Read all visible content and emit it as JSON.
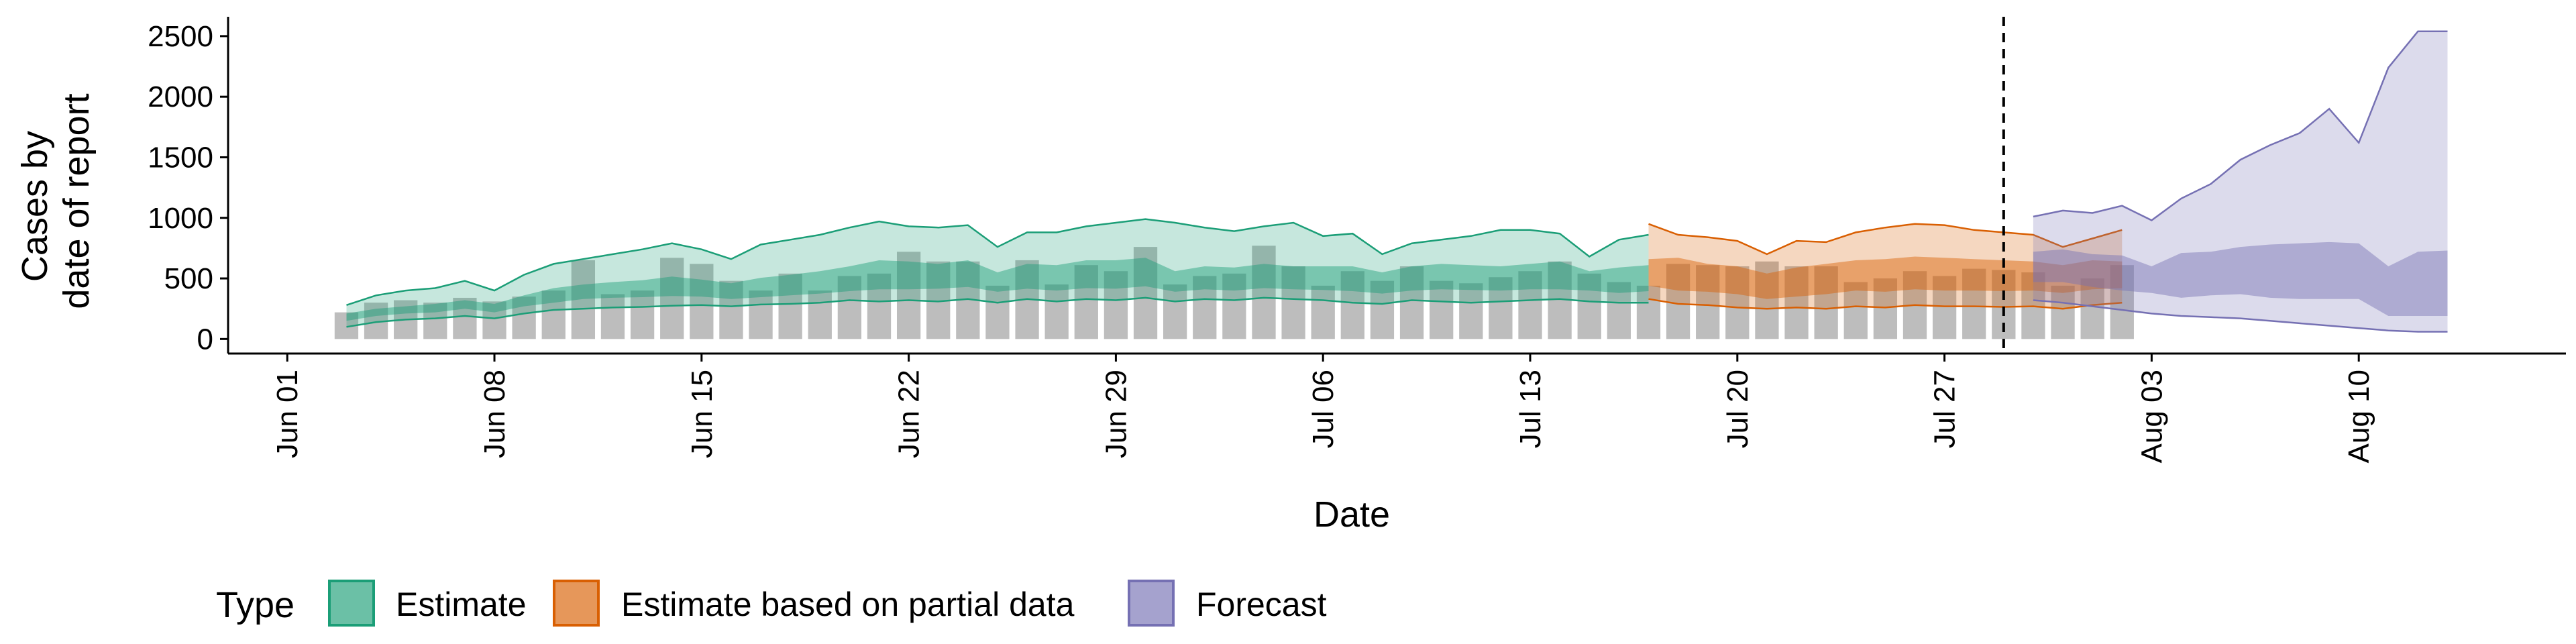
{
  "chart_data": {
    "type": "area",
    "xlabel": "Date",
    "ylabel_lines": [
      "Cases by",
      "date of report"
    ],
    "x_range": [
      "2020-05-30",
      "2020-08-17"
    ],
    "ylim": [
      -120,
      2660
    ],
    "y_ticks": [
      0,
      500,
      1000,
      1500,
      2000,
      2500
    ],
    "x_ticks": [
      {
        "date": "2020-06-01",
        "label": "Jun 01"
      },
      {
        "date": "2020-06-08",
        "label": "Jun 08"
      },
      {
        "date": "2020-06-15",
        "label": "Jun 15"
      },
      {
        "date": "2020-06-22",
        "label": "Jun 22"
      },
      {
        "date": "2020-06-29",
        "label": "Jun 29"
      },
      {
        "date": "2020-07-06",
        "label": "Jul 06"
      },
      {
        "date": "2020-07-13",
        "label": "Jul 13"
      },
      {
        "date": "2020-07-20",
        "label": "Jul 20"
      },
      {
        "date": "2020-07-27",
        "label": "Jul 27"
      },
      {
        "date": "2020-08-03",
        "label": "Aug 03"
      },
      {
        "date": "2020-08-10",
        "label": "Aug 10"
      }
    ],
    "vline_date": "2020-07-29",
    "observed_cases": {
      "start_date": "2020-06-03",
      "values": [
        220,
        300,
        320,
        300,
        340,
        310,
        350,
        400,
        650,
        370,
        400,
        670,
        620,
        480,
        400,
        540,
        400,
        520,
        540,
        720,
        640,
        640,
        440,
        650,
        450,
        610,
        560,
        760,
        450,
        520,
        540,
        770,
        600,
        440,
        560,
        480,
        600,
        480,
        460,
        510,
        560,
        640,
        540,
        470,
        440,
        620,
        610,
        600,
        640,
        600,
        600,
        470,
        500,
        560,
        520,
        580,
        570,
        550,
        440,
        500,
        610
      ]
    },
    "series": [
      {
        "name": "Estimate",
        "color": "#1b9e77",
        "start_date": "2020-06-03",
        "outer_lower": [
          100,
          140,
          160,
          170,
          190,
          170,
          210,
          240,
          250,
          260,
          265,
          275,
          280,
          270,
          285,
          290,
          300,
          320,
          310,
          320,
          310,
          330,
          300,
          330,
          310,
          330,
          320,
          340,
          310,
          330,
          320,
          340,
          330,
          320,
          300,
          290,
          320,
          310,
          300,
          310,
          320,
          330,
          310,
          300,
          300
        ],
        "inner_lower": [
          150,
          190,
          210,
          220,
          250,
          220,
          270,
          300,
          330,
          340,
          345,
          355,
          350,
          330,
          345,
          360,
          375,
          395,
          410,
          410,
          415,
          430,
          390,
          415,
          400,
          420,
          415,
          435,
          390,
          410,
          400,
          420,
          410,
          405,
          395,
          375,
          400,
          410,
          405,
          400,
          410,
          410,
          400,
          380,
          395
        ],
        "inner_upper": [
          210,
          250,
          270,
          290,
          320,
          290,
          360,
          420,
          450,
          470,
          485,
          515,
          490,
          460,
          505,
          530,
          560,
          600,
          650,
          640,
          620,
          650,
          550,
          620,
          610,
          650,
          650,
          670,
          560,
          600,
          590,
          620,
          600,
          600,
          600,
          550,
          600,
          620,
          610,
          600,
          620,
          640,
          560,
          590,
          610
        ],
        "outer_upper": [
          280,
          360,
          400,
          420,
          480,
          400,
          530,
          620,
          660,
          700,
          740,
          790,
          740,
          660,
          780,
          820,
          860,
          920,
          970,
          930,
          920,
          940,
          760,
          880,
          880,
          930,
          960,
          990,
          960,
          920,
          890,
          930,
          960,
          850,
          870,
          700,
          790,
          820,
          850,
          900,
          900,
          870,
          680,
          820,
          860
        ]
      },
      {
        "name": "Estimate based on partial data",
        "color": "#d95f02",
        "start_date": "2020-07-17",
        "outer_lower": [
          330,
          290,
          280,
          260,
          250,
          260,
          250,
          270,
          260,
          280,
          270,
          270,
          265,
          270,
          250,
          280,
          300
        ],
        "inner_lower": [
          440,
          400,
          390,
          370,
          330,
          350,
          370,
          400,
          390,
          410,
          400,
          400,
          395,
          400,
          380,
          410,
          420
        ],
        "inner_upper": [
          660,
          670,
          620,
          600,
          540,
          590,
          620,
          650,
          660,
          680,
          670,
          660,
          650,
          640,
          610,
          650,
          640
        ],
        "outer_upper": [
          950,
          860,
          840,
          810,
          700,
          810,
          800,
          880,
          920,
          950,
          940,
          900,
          880,
          860,
          760,
          830,
          900
        ]
      },
      {
        "name": "Forecast",
        "color": "#7570b3",
        "start_date": "2020-07-30",
        "outer_lower": [
          320,
          300,
          270,
          240,
          210,
          190,
          180,
          170,
          150,
          130,
          110,
          90,
          70,
          60,
          60
        ],
        "inner_lower": [
          470,
          470,
          430,
          400,
          380,
          340,
          360,
          370,
          340,
          330,
          330,
          330,
          190,
          190,
          190
        ],
        "inner_upper": [
          720,
          740,
          700,
          690,
          600,
          710,
          720,
          760,
          780,
          790,
          800,
          790,
          600,
          720,
          730
        ],
        "outer_upper": [
          1010,
          1060,
          1040,
          1100,
          980,
          1160,
          1280,
          1480,
          1600,
          1700,
          1900,
          1620,
          2240,
          2540,
          2540
        ]
      }
    ],
    "legend": {
      "position": "bottom-left",
      "title": "Type",
      "entries": [
        {
          "label": "Estimate",
          "color": "#1b9e77"
        },
        {
          "label": "Estimate based on partial data",
          "color": "#d95f02"
        },
        {
          "label": "Forecast",
          "color": "#7570b3"
        }
      ]
    }
  }
}
